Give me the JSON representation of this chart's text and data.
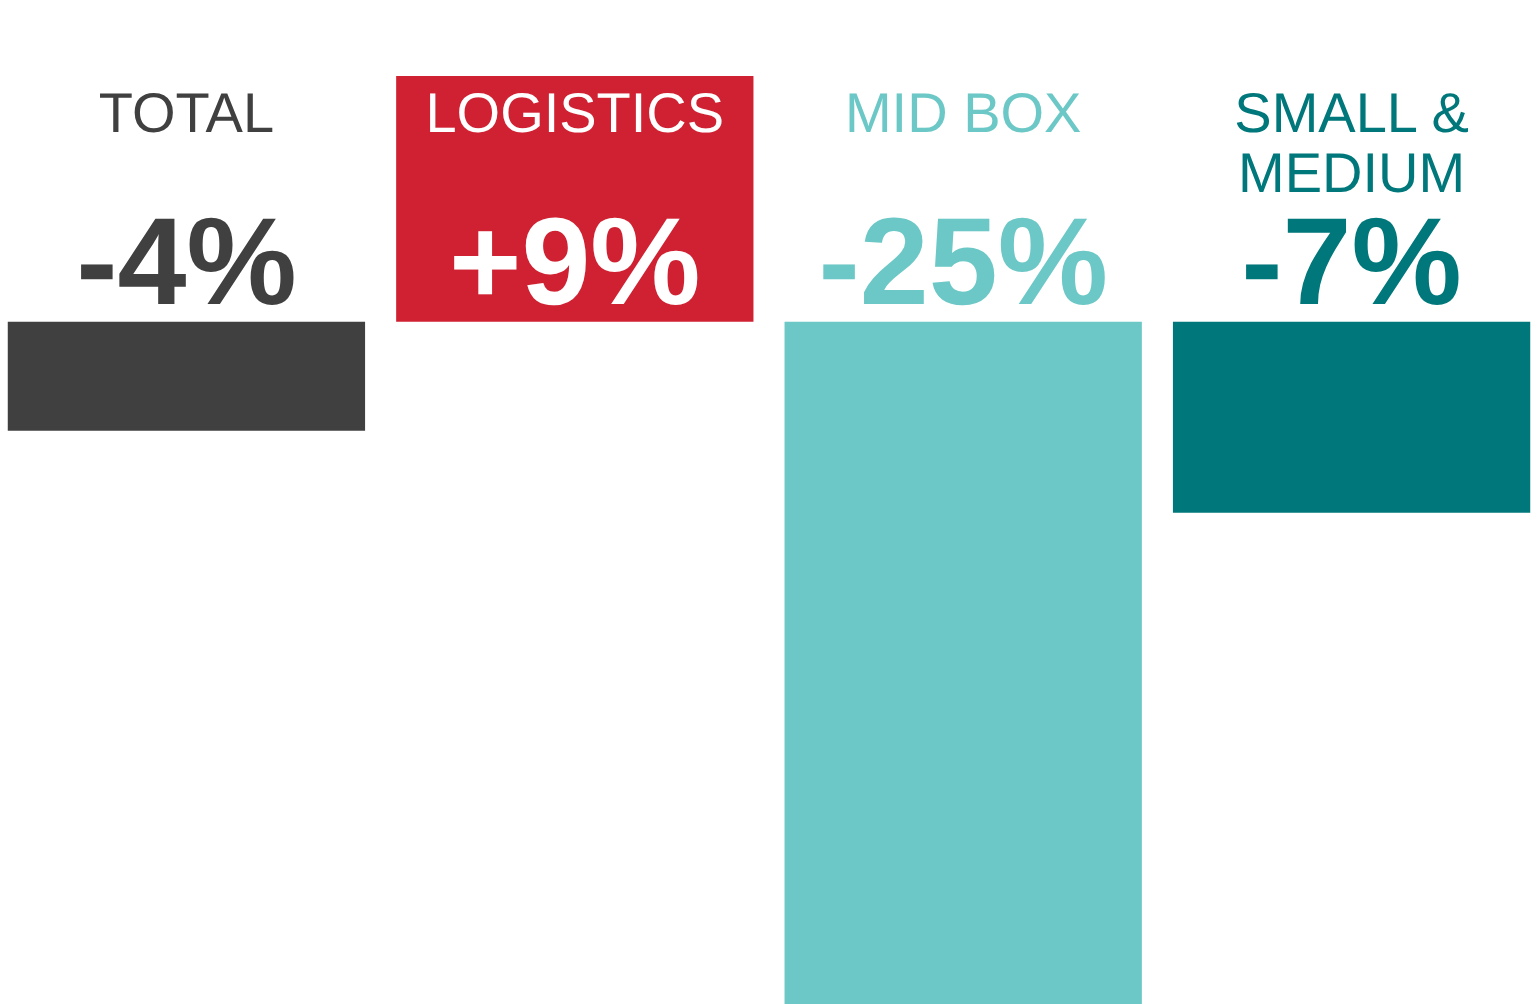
{
  "chart_data": {
    "type": "bar",
    "categories": [
      "TOTAL",
      "LOGISTICS",
      "MID BOX",
      "SMALL & MEDIUM"
    ],
    "values": [
      -4,
      9,
      -25,
      -7
    ],
    "colors": [
      "#404040",
      "#cf2132",
      "#6cc8c6",
      "#00777a"
    ],
    "value_labels": [
      "-4%",
      "+9%",
      "-25%",
      "-7%"
    ]
  }
}
